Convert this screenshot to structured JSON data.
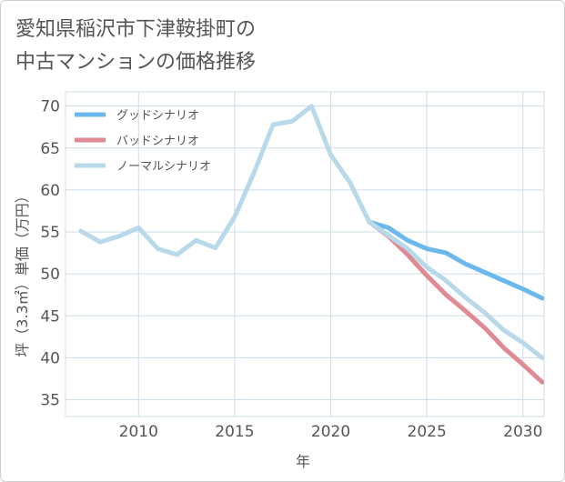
{
  "title": {
    "line1": "愛知県稲沢市下津鞍掛町の",
    "line2": "中古マンションの価格推移"
  },
  "colors": {
    "good": "#6cb8ec",
    "bad": "#e08a93",
    "normal": "#b7d9ea",
    "grid": "#cfdde6"
  },
  "chart_data": {
    "type": "line",
    "xlabel": "年",
    "ylabel": "坪（3.3㎡）単価（万円）",
    "xlim": [
      2006.2,
      2031.1
    ],
    "ylim": [
      33,
      71.7
    ],
    "xticks": [
      2010,
      2015,
      2020,
      2025,
      2030
    ],
    "yticks": [
      35,
      40,
      45,
      50,
      55,
      60,
      65,
      70
    ],
    "grid": true,
    "legend_position": "top-left",
    "series": [
      {
        "name": "グッドシナリオ",
        "color": "#6cb8ec",
        "x": [
          2022,
          2023,
          2024,
          2025,
          2026,
          2027,
          2028,
          2029,
          2030,
          2031
        ],
        "y": [
          56.2,
          55.5,
          54.0,
          53.0,
          52.5,
          51.2,
          50.2,
          49.2,
          48.2,
          47.1
        ]
      },
      {
        "name": "バッドシナリオ",
        "color": "#e08a93",
        "x": [
          2022,
          2023,
          2024,
          2025,
          2026,
          2027,
          2028,
          2029,
          2030,
          2031
        ],
        "y": [
          56.2,
          54.5,
          52.3,
          49.8,
          47.5,
          45.6,
          43.6,
          41.2,
          39.2,
          37.1
        ]
      },
      {
        "name": "ノーマルシナリオ",
        "color": "#b7d9ea",
        "x": [
          2007,
          2008,
          2009,
          2010,
          2011,
          2012,
          2013,
          2014,
          2015,
          2016,
          2017,
          2018,
          2019,
          2020,
          2021,
          2022,
          2023,
          2024,
          2025,
          2026,
          2027,
          2028,
          2029,
          2030,
          2031
        ],
        "y": [
          55.1,
          53.8,
          54.5,
          55.5,
          53.0,
          52.3,
          54.0,
          53.1,
          56.8,
          62.0,
          67.8,
          68.2,
          70.0,
          64.2,
          60.9,
          56.2,
          54.6,
          53.0,
          50.8,
          49.2,
          47.2,
          45.4,
          43.3,
          41.8,
          40.0
        ]
      }
    ]
  }
}
